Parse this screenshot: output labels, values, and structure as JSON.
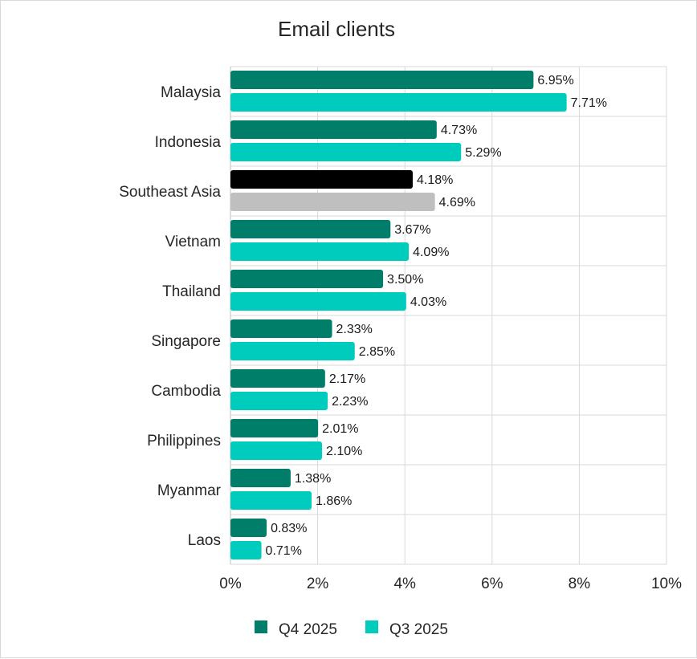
{
  "chart_data": {
    "type": "bar",
    "orientation": "horizontal",
    "title": "Email clients",
    "categories": [
      "Malaysia",
      "Indonesia",
      "Southeast Asia",
      "Vietnam",
      "Thailand",
      "Singapore",
      "Cambodia",
      "Philippines",
      "Myanmar",
      "Laos"
    ],
    "series": [
      {
        "name": "Q4 2025",
        "color": "#007E6A",
        "values": [
          6.95,
          4.73,
          4.18,
          3.67,
          3.5,
          2.33,
          2.17,
          2.01,
          1.38,
          0.83
        ],
        "labels": [
          "6.95%",
          "4.73%",
          "4.18%",
          "3.67%",
          "3.50%",
          "2.33%",
          "2.17%",
          "2.01%",
          "1.38%",
          "0.83%"
        ]
      },
      {
        "name": "Q3 2025",
        "color": "#00CCBE",
        "values": [
          7.71,
          5.29,
          4.69,
          4.09,
          4.03,
          2.85,
          2.23,
          2.1,
          1.86,
          0.71
        ],
        "labels": [
          "7.71%",
          "5.29%",
          "4.69%",
          "4.09%",
          "4.03%",
          "2.85%",
          "2.23%",
          "2.10%",
          "1.86%",
          "0.71%"
        ]
      }
    ],
    "highlight": {
      "category": "Southeast Asia",
      "colors": [
        "#000000",
        "#BFBFBF"
      ]
    },
    "xlim": [
      0,
      10
    ],
    "xticks": [
      0,
      2,
      4,
      6,
      8,
      10
    ],
    "xtick_labels": [
      "0%",
      "2%",
      "4%",
      "6%",
      "8%",
      "10%"
    ],
    "grid": true,
    "legend_position": "bottom"
  }
}
